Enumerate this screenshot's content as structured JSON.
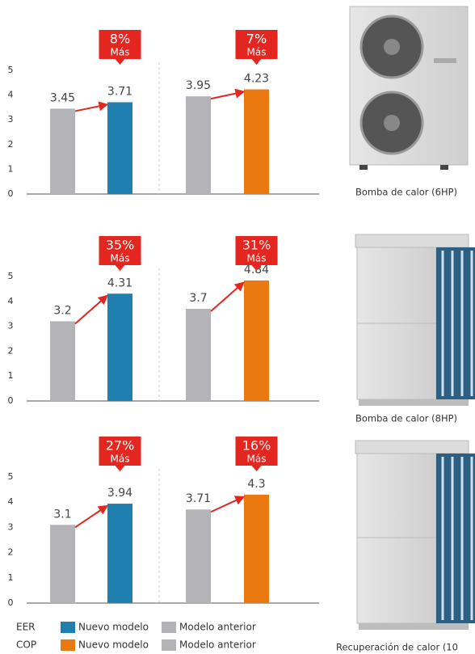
{
  "chart_data": [
    {
      "type": "bar",
      "ylim": [
        0,
        5
      ],
      "yticks": [
        0,
        1,
        2,
        3,
        4,
        5
      ],
      "categories": [
        null,
        null
      ],
      "series": [
        {
          "color": "#b4b4b8",
          "values": [
            3.45,
            3.95
          ]
        },
        {
          "colors": [
            "#1f80b0",
            "#ea7a10"
          ],
          "values": [
            3.71,
            4.23
          ]
        }
      ],
      "annotations": [
        {
          "label": "8%",
          "text": "Más"
        },
        {
          "label": "7%",
          "text": "Más"
        }
      ]
    },
    {
      "type": "bar",
      "ylim": [
        0,
        5
      ],
      "yticks": [
        0,
        1,
        2,
        3,
        4,
        5
      ],
      "categories": [
        null,
        null
      ],
      "series": [
        {
          "color": "#b4b4b8",
          "values": [
            3.2,
            3.7
          ]
        },
        {
          "colors": [
            "#1f80b0",
            "#ea7a10"
          ],
          "values": [
            4.31,
            4.84
          ]
        }
      ],
      "annotations": [
        {
          "label": "35%",
          "text": "Más"
        },
        {
          "label": "31%",
          "text": "Más"
        }
      ]
    },
    {
      "type": "bar",
      "ylim": [
        0,
        5
      ],
      "yticks": [
        0,
        1,
        2,
        3,
        4,
        5
      ],
      "categories": [
        null,
        null
      ],
      "series": [
        {
          "color": "#b4b4b8",
          "values": [
            3.1,
            3.71
          ]
        },
        {
          "colors": [
            "#1f80b0",
            "#ea7a10"
          ],
          "values": [
            3.94,
            4.3
          ]
        }
      ],
      "annotations": [
        {
          "label": "27%",
          "text": "Más"
        },
        {
          "label": "16%",
          "text": "Más"
        }
      ]
    }
  ],
  "legend": [
    {
      "label": "EER",
      "items": [
        {
          "name": "Nuevo modelo",
          "color": "#1f80b0"
        },
        {
          "name": "Modelo anterior",
          "color": "#b4b4b8"
        }
      ]
    },
    {
      "label": "COP",
      "items": [
        {
          "name": "Nuevo modelo",
          "color": "#ea7a10"
        },
        {
          "name": "Modelo anterior",
          "color": "#b4b4b8"
        }
      ]
    }
  ],
  "products": [
    "Bomba de calor (6HP)",
    "Bomba de calor (8HP)",
    "Recuperación de calor (10"
  ]
}
